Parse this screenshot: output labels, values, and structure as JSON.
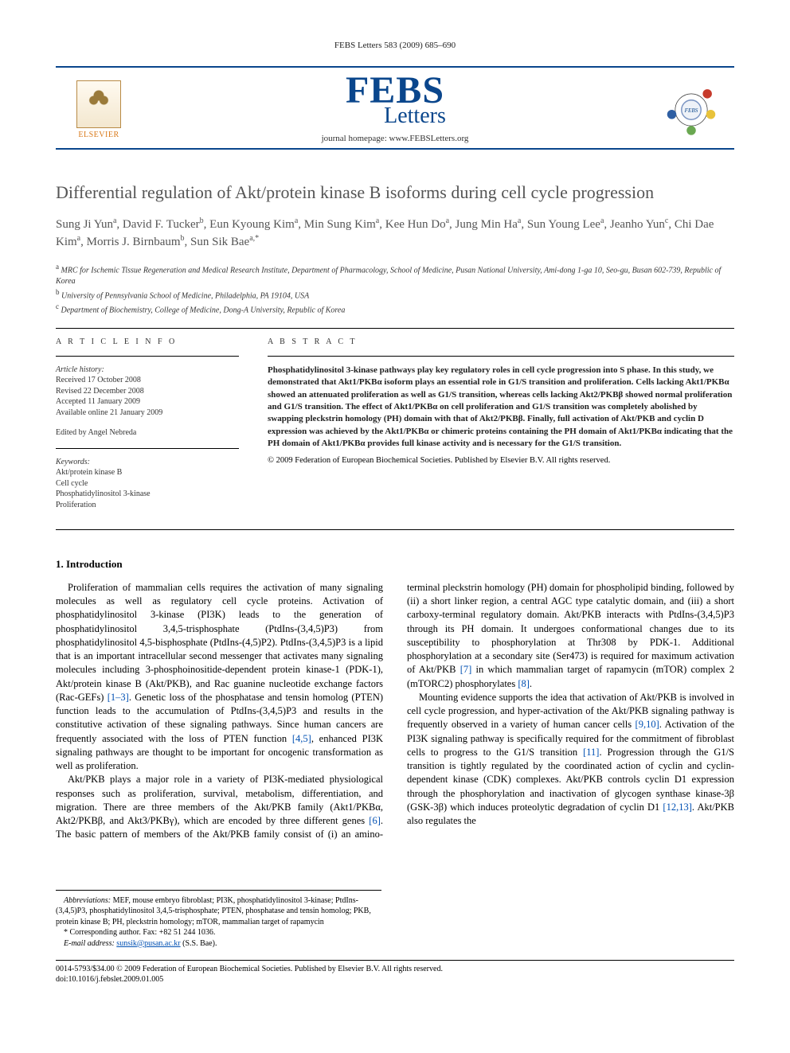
{
  "header": {
    "citation": "FEBS Letters 583 (2009) 685–690",
    "publisher_name": "ELSEVIER",
    "journal_big": "FEBS",
    "journal_sub": "Letters",
    "homepage_label": "journal homepage: ",
    "homepage_url": "www.FEBSLetters.org",
    "society_center_label": "FEBS",
    "society_colors": {
      "red": "#c63a2b",
      "yellow": "#e8c23a",
      "blue": "#2f5fa3",
      "green": "#6aa851",
      "ring": "#333333"
    }
  },
  "title": "Differential regulation of Akt/protein kinase B isoforms during cell cycle progression",
  "authors_html": "Sung Ji Yun<sup>a</sup>, David F. Tucker<sup>b</sup>, Eun Kyoung Kim<sup>a</sup>, Min Sung Kim<sup>a</sup>, Kee Hun Do<sup>a</sup>, Jung Min Ha<sup>a</sup>, Sun Young Lee<sup>a</sup>, Jeanho Yun<sup>c</sup>, Chi Dae Kim<sup>a</sup>, Morris J. Birnbaum<sup>b</sup>, Sun Sik Bae<sup>a,*</sup>",
  "affiliations": [
    {
      "marker": "a",
      "text": "MRC for Ischemic Tissue Regeneration and Medical Research Institute, Department of Pharmacology, School of Medicine, Pusan National University, Ami-dong 1-ga 10, Seo-gu, Busan 602-739, Republic of Korea"
    },
    {
      "marker": "b",
      "text": "University of Pennsylvania School of Medicine, Philadelphia, PA 19104, USA"
    },
    {
      "marker": "c",
      "text": "Department of Biochemistry, College of Medicine, Dong-A University, Republic of Korea"
    }
  ],
  "info": {
    "heading": "A R T I C L E   I N F O",
    "history_label": "Article history:",
    "history": [
      "Received 17 October 2008",
      "Revised 22 December 2008",
      "Accepted 11 January 2009",
      "Available online 21 January 2009"
    ],
    "edited_by": "Edited by Angel Nebreda",
    "keywords_label": "Keywords:",
    "keywords": [
      "Akt/protein kinase B",
      "Cell cycle",
      "Phosphatidylinositol 3-kinase",
      "Proliferation"
    ]
  },
  "abstract": {
    "heading": "A B S T R A C T",
    "text": "Phosphatidylinositol 3-kinase pathways play key regulatory roles in cell cycle progression into S phase. In this study, we demonstrated that Akt1/PKBα isoform plays an essential role in G1/S transition and proliferation. Cells lacking Akt1/PKBα showed an attenuated proliferation as well as G1/S transition, whereas cells lacking Akt2/PKBβ showed normal proliferation and G1/S transition. The effect of Akt1/PKBα on cell proliferation and G1/S transition was completely abolished by swapping pleckstrin homology (PH) domain with that of Akt2/PKBβ. Finally, full activation of Akt/PKB and cyclin D expression was achieved by the Akt1/PKBα or chimeric proteins containing the PH domain of Akt1/PKBα indicating that the PH domain of Akt1/PKBα provides full kinase activity and is necessary for the G1/S transition.",
    "copyright": "© 2009 Federation of European Biochemical Societies. Published by Elsevier B.V. All rights reserved."
  },
  "section1_title": "1. Introduction",
  "paragraphs": [
    "Proliferation of mammalian cells requires the activation of many signaling molecules as well as regulatory cell cycle proteins. Activation of phosphatidylinositol 3-kinase (PI3K) leads to the generation of phosphatidylinositol 3,4,5-trisphosphate (PtdIns-(3,4,5)P3) from phosphatidylinositol 4,5-bisphosphate (PtdIns-(4,5)P2). PtdIns-(3,4,5)P3 is a lipid that is an important intracellular second messenger that activates many signaling molecules including 3-phosphoinositide-dependent protein kinase-1 (PDK-1), Akt/protein kinase B (Akt/PKB), and Rac guanine nucleotide exchange factors (Rac-GEFs) [1–3]. Genetic loss of the phosphatase and tensin homolog (PTEN) function leads to the accumulation of PtdIns-(3,4,5)P3 and results in the constitutive activation of these signaling pathways. Since human cancers are frequently associated with the loss of PTEN function [4,5], enhanced PI3K signaling pathways are thought to be important for oncogenic transformation as well as proliferation.",
    "Akt/PKB plays a major role in a variety of PI3K-mediated physiological responses such as proliferation, survival, metabolism, differentiation, and migration. There are three members of the Akt/PKB family (Akt1/PKBα, Akt2/PKBβ, and Akt3/PKBγ), which are encoded by three different genes [6]. The basic pattern of members of the Akt/PKB family consist of (i) an amino-terminal pleckstrin homology (PH) domain for phospholipid binding, followed by (ii) a short linker region, a central AGC type catalytic domain, and (iii) a short carboxy-terminal regulatory domain. Akt/PKB interacts with PtdIns-(3,4,5)P3 through its PH domain. It undergoes conformational changes due to its susceptibility to phosphorylation at Thr308 by PDK-1. Additional phosphorylation at a secondary site (Ser473) is required for maximum activation of Akt/PKB [7] in which mammalian target of rapamycin (mTOR) complex 2 (mTORC2) phosphorylates [8].",
    "Mounting evidence supports the idea that activation of Akt/PKB is involved in cell cycle progression, and hyper-activation of the Akt/PKB signaling pathway is frequently observed in a variety of human cancer cells [9,10]. Activation of the PI3K signaling pathway is specifically required for the commitment of fibroblast cells to progress to the G1/S transition [11]. Progression through the G1/S transition is tightly regulated by the coordinated action of cyclin and cyclin-dependent kinase (CDK) complexes. Akt/PKB controls cyclin D1 expression through the phosphorylation and inactivation of glycogen synthase kinase-3β (GSK-3β) which induces proteolytic degradation of cyclin D1 [12,13]. Akt/PKB also regulates the"
  ],
  "footnotes": {
    "abbrev_label": "Abbreviations:",
    "abbrev": "MEF, mouse embryo fibroblast; PI3K, phosphatidylinositol 3-kinase; PtdIns-(3,4,5)P3, phosphatidylinositol 3,4,5-trisphosphate; PTEN, phosphatase and tensin homolog; PKB, protein kinase B; PH, pleckstrin homology; mTOR, mammalian target of rapamycin",
    "corresponding": "* Corresponding author. Fax: +82 51 244 1036.",
    "email_label": "E-mail address: ",
    "email": "sunsik@pusan.ac.kr",
    "email_person": " (S.S. Bae)."
  },
  "bottom": {
    "line1": "0014-5793/$34.00 © 2009 Federation of European Biochemical Societies. Published by Elsevier B.V. All rights reserved.",
    "line2": "doi:10.1016/j.febslet.2009.01.005"
  },
  "colors": {
    "brand_blue": "#0a468c",
    "elsevier_orange": "#d97a1b",
    "link_blue": "#0050b3",
    "text_gray": "#555555"
  }
}
